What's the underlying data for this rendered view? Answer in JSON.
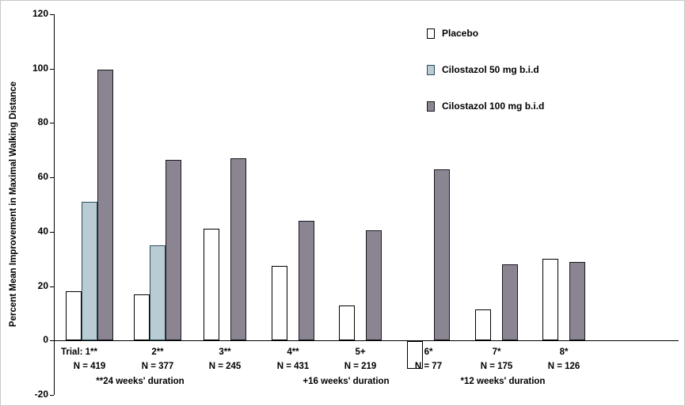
{
  "chart_data": {
    "type": "bar",
    "title": "",
    "ylabel": "Percent Mean Improvement in Maximal Walking Distance",
    "xlabel": "",
    "ylim": [
      -20,
      120
    ],
    "yticks": [
      120,
      100,
      80,
      60,
      40,
      20,
      0,
      -20
    ],
    "grid": false,
    "legend_position": "top-right",
    "legend": [
      {
        "key": "placebo",
        "name": "Placebo",
        "fill": "#ffffff",
        "border": "#000000"
      },
      {
        "key": "cilostazol_50",
        "name": "Cilostazol 50 mg b.i.d",
        "fill": "#b9cbd3",
        "border": "#2e4e5a"
      },
      {
        "key": "cilostazol_100",
        "name": "Cilostazol 100 mg b.i.d",
        "fill": "#8b8591",
        "border": "#1a171f"
      }
    ],
    "groups": [
      {
        "trial_label": "Trial: 1**",
        "n_label": "N = 419",
        "placebo": 18,
        "cilostazol_50": 51,
        "cilostazol_100": 99.5
      },
      {
        "trial_label": "2**",
        "n_label": "N = 377",
        "placebo": 17,
        "cilostazol_50": 35,
        "cilostazol_100": 66.5
      },
      {
        "trial_label": "3**",
        "n_label": "N = 245",
        "placebo": 41,
        "cilostazol_50": null,
        "cilostazol_100": 67
      },
      {
        "trial_label": "4**",
        "n_label": "N = 431",
        "placebo": 27.5,
        "cilostazol_50": null,
        "cilostazol_100": 44
      },
      {
        "trial_label": "5+",
        "n_label": "N = 219",
        "placebo": 13,
        "cilostazol_50": null,
        "cilostazol_100": 40.5
      },
      {
        "trial_label": "6*",
        "n_label": "N = 77",
        "placebo": -10,
        "cilostazol_50": null,
        "cilostazol_100": 63
      },
      {
        "trial_label": "7*",
        "n_label": "N = 175",
        "placebo": 11.5,
        "cilostazol_50": null,
        "cilostazol_100": 28
      },
      {
        "trial_label": "8*",
        "n_label": "N = 126",
        "placebo": 30,
        "cilostazol_50": null,
        "cilostazol_100": 29
      }
    ],
    "footnotes": [
      {
        "text": "**24 weeks' duration"
      },
      {
        "text": "+16 weeks' duration"
      },
      {
        "text": "*12 weeks' duration"
      }
    ]
  }
}
